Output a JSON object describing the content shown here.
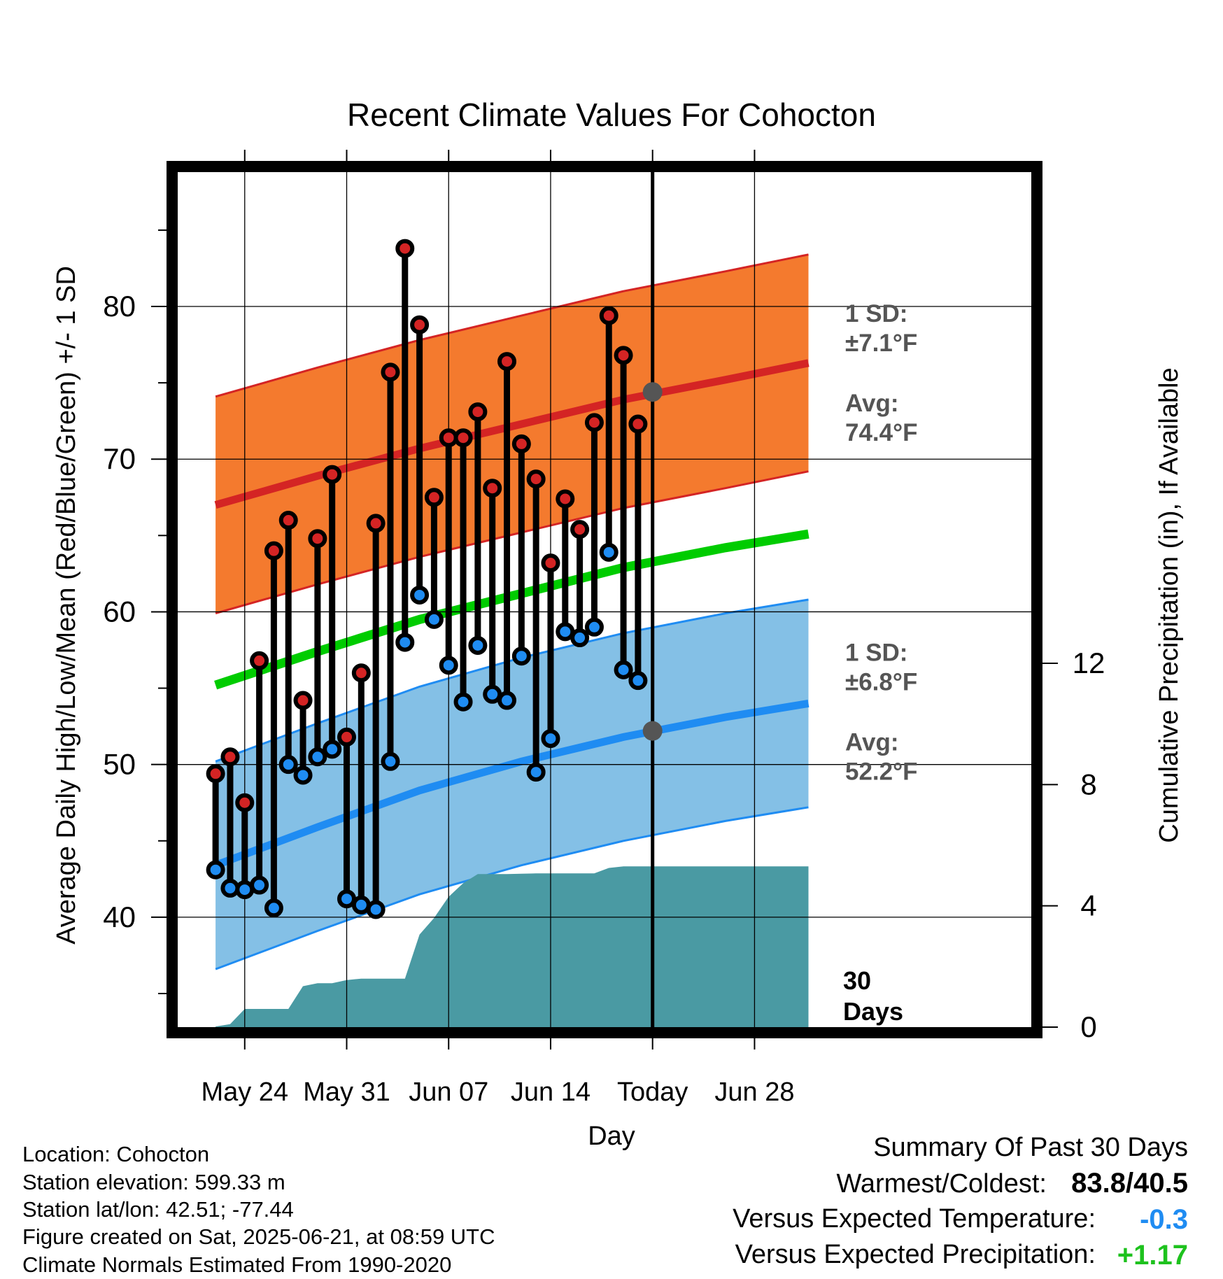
{
  "chart_data": {
    "type": "line",
    "title": "Recent Climate Values For Cohocton",
    "xlabel": "Day",
    "ylabel": "Average Daily High/Low/Mean (Red/Blue/Green) +/- 1 SD",
    "y2label": "Cumulative Precipitation (in), If Available",
    "xlim": [
      -4.6,
      54
    ],
    "ylim": [
      32.8,
      88.8
    ],
    "y2lim": [
      0,
      28.2
    ],
    "x_ticks": [
      {
        "x": 0,
        "label": "May 24"
      },
      {
        "x": 7,
        "label": "May 31"
      },
      {
        "x": 14,
        "label": "Jun 07"
      },
      {
        "x": 21,
        "label": "Jun 14"
      },
      {
        "x": 28,
        "label": "Today"
      },
      {
        "x": 35,
        "label": "Jun 28"
      }
    ],
    "y_ticks": [
      40,
      50,
      60,
      70,
      80
    ],
    "y_minor_ticks": [
      35,
      45,
      55,
      65,
      75,
      85
    ],
    "y2_ticks": [
      0,
      4,
      8,
      12
    ],
    "today_x": 28,
    "window_label": [
      "30",
      "Days"
    ],
    "daily_highs": [
      49.4,
      50.5,
      47.5,
      56.8,
      64.0,
      66.0,
      54.2,
      64.8,
      69.0,
      51.8,
      56.0,
      65.8,
      75.7,
      83.8,
      78.8,
      67.5,
      71.4,
      71.4,
      73.1,
      68.1,
      76.4,
      71.0,
      68.7,
      63.2,
      67.4,
      65.4,
      72.4,
      79.4,
      76.8,
      72.3
    ],
    "daily_lows": [
      43.1,
      41.9,
      41.8,
      42.1,
      40.6,
      50.0,
      49.3,
      50.5,
      51.0,
      41.2,
      40.8,
      40.5,
      50.2,
      58.0,
      61.1,
      59.5,
      56.5,
      54.1,
      57.8,
      54.6,
      54.2,
      57.1,
      49.5,
      51.7,
      58.7,
      58.3,
      59.0,
      63.9,
      56.2,
      55.5
    ],
    "normal_high": {
      "x": [
        -2,
        5,
        12,
        19,
        26,
        33,
        38.7
      ],
      "values": [
        67.0,
        68.9,
        70.7,
        72.3,
        73.9,
        75.2,
        76.3
      ],
      "sd": 7.1
    },
    "normal_low": {
      "x": [
        -2,
        5,
        12,
        19,
        26,
        33,
        38.7
      ],
      "values": [
        43.4,
        45.9,
        48.3,
        50.2,
        51.8,
        53.1,
        54.0
      ],
      "sd": 6.8
    },
    "normal_mean": {
      "x": [
        -2,
        5,
        12,
        19,
        26,
        33,
        38.7
      ],
      "values": [
        55.2,
        57.4,
        59.5,
        61.2,
        62.9,
        64.2,
        65.1
      ]
    },
    "cumulative_precip": {
      "x": [
        -2,
        -1,
        0,
        1,
        2,
        3,
        4,
        5,
        6,
        7,
        8,
        9,
        10,
        11,
        12,
        13,
        14,
        15,
        16,
        17,
        18,
        19,
        20,
        21,
        22,
        23,
        24,
        25,
        26,
        27,
        28,
        38.7
      ],
      "values": [
        0.02,
        0.1,
        0.6,
        0.6,
        0.6,
        0.6,
        1.35,
        1.45,
        1.45,
        1.55,
        1.6,
        1.6,
        1.6,
        1.6,
        3.05,
        3.6,
        4.3,
        4.75,
        5.05,
        5.05,
        5.05,
        5.06,
        5.07,
        5.07,
        5.07,
        5.07,
        5.07,
        5.25,
        5.3,
        5.3,
        5.3,
        5.3
      ]
    },
    "high_label": {
      "line1": "1 SD:",
      "line2": "±7.1°F",
      "line3": "Avg:",
      "line4": "74.4°F",
      "avg": 74.4
    },
    "low_label": {
      "line1": "1 SD:",
      "line2": "±6.8°F",
      "line3": "Avg:",
      "line4": "52.2°F",
      "avg": 52.2
    },
    "colors": {
      "high_band": "#f47a2e",
      "high_line": "#d42424",
      "low_band": "#84c0e6",
      "low_line": "#1f8cf2",
      "mean_line": "#00cc00",
      "precip": "#4a9aa3",
      "high_dot": "#d42424",
      "low_dot": "#1f8cf2"
    }
  },
  "info": {
    "location": "Location: Cohocton",
    "elevation": "Station elevation: 599.33 m",
    "latlon": "Station lat/lon: 42.51; -77.44",
    "created": "Figure created on Sat, 2025-06-21, at 08:59 UTC",
    "normals": "Climate Normals Estimated From 1990-2020"
  },
  "summary": {
    "title": "Summary Of Past 30 Days",
    "warmest_label": "Warmest/Coldest:",
    "warmest_value": "83.8/40.5",
    "temp_label": "Versus Expected Temperature:",
    "temp_value": "-0.3",
    "precip_label": "Versus Expected Precipitation:",
    "precip_value": "+1.17",
    "temp_color": "#1f8cf2",
    "precip_color": "#1ec21e"
  }
}
